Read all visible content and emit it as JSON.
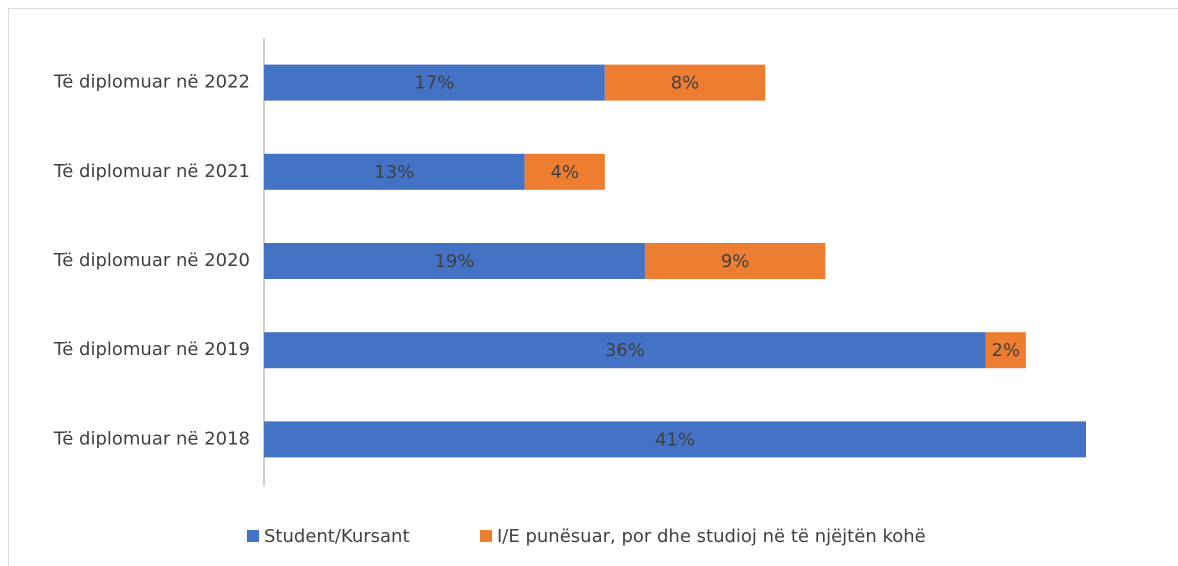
{
  "chart_data": {
    "type": "bar",
    "orientation": "horizontal",
    "stacked": true,
    "categories": [
      "Të diplomuar në 2022",
      "Të diplomuar në 2021",
      "Të diplomuar në 2020",
      "Të diplomuar në 2019",
      "Të diplomuar në 2018"
    ],
    "series": [
      {
        "name": "Student/Kursant",
        "color": "#4472c4",
        "values": [
          17,
          13,
          19,
          36,
          41
        ],
        "value_labels": [
          "17%",
          "13%",
          "19%",
          "36%",
          "41%"
        ]
      },
      {
        "name": "I/E punësuar, por dhe studioj në të njëjtën kohë",
        "color": "#ed7d31",
        "values": [
          8,
          4,
          9,
          2,
          null
        ],
        "value_labels": [
          "8%",
          "4%",
          "9%",
          "2%",
          null
        ]
      }
    ],
    "legend": "bottom"
  }
}
